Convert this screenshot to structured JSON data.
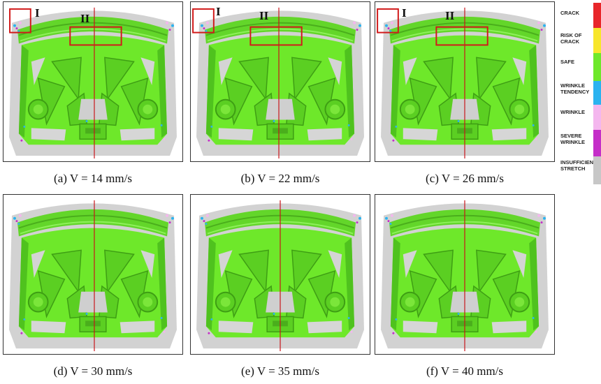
{
  "captions": [
    "(a) V = 14 mm/s",
    "(b) V = 22 mm/s",
    "(c) V = 26 mm/s",
    "(d) V = 30 mm/s",
    "(e) V = 35 mm/s",
    "(f) V = 40 mm/s"
  ],
  "region_markers": {
    "region_one": "I",
    "region_two": "II"
  },
  "legend": [
    {
      "label": "CRACK",
      "color": "#e8262a"
    },
    {
      "label": "RISK OF CRACK",
      "color": "#f7e62b"
    },
    {
      "label": "SAFE",
      "color": "#6ee82a"
    },
    {
      "label": "WRINKLE TENDENCY",
      "color": "#2bb3f0"
    },
    {
      "label": "WRINKLE",
      "color": "#f4b6ee"
    },
    {
      "label": "SEVERE WRINKLE",
      "color": "#c42ec8"
    },
    {
      "label": "INSUFFICIEN STRETCH",
      "color": "#c7c7c7"
    }
  ]
}
